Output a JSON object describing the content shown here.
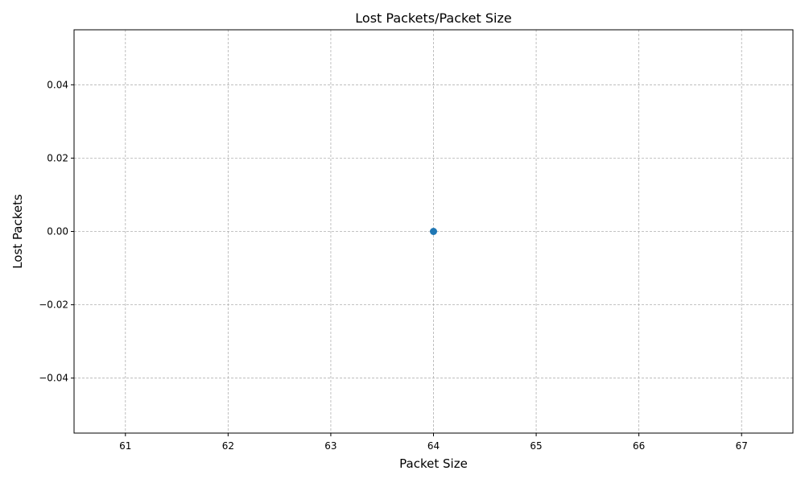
{
  "chart_data": {
    "type": "scatter",
    "title": "Lost Packets/Packet Size",
    "xlabel": "Packet Size",
    "ylabel": "Lost Packets",
    "xlim": [
      60.5,
      67.5
    ],
    "ylim": [
      -0.055,
      0.055
    ],
    "xticks": [
      61,
      62,
      63,
      64,
      65,
      66,
      67
    ],
    "xtick_labels": [
      "61",
      "62",
      "63",
      "64",
      "65",
      "66",
      "67"
    ],
    "yticks": [
      -0.04,
      -0.02,
      0.0,
      0.02,
      0.04
    ],
    "ytick_labels": [
      "−0.04",
      "−0.02",
      "0.00",
      "0.02",
      "0.04"
    ],
    "grid": true,
    "series": [
      {
        "color": "#1f77b4",
        "points": [
          {
            "x": 64,
            "y": 0.0
          }
        ]
      }
    ]
  }
}
